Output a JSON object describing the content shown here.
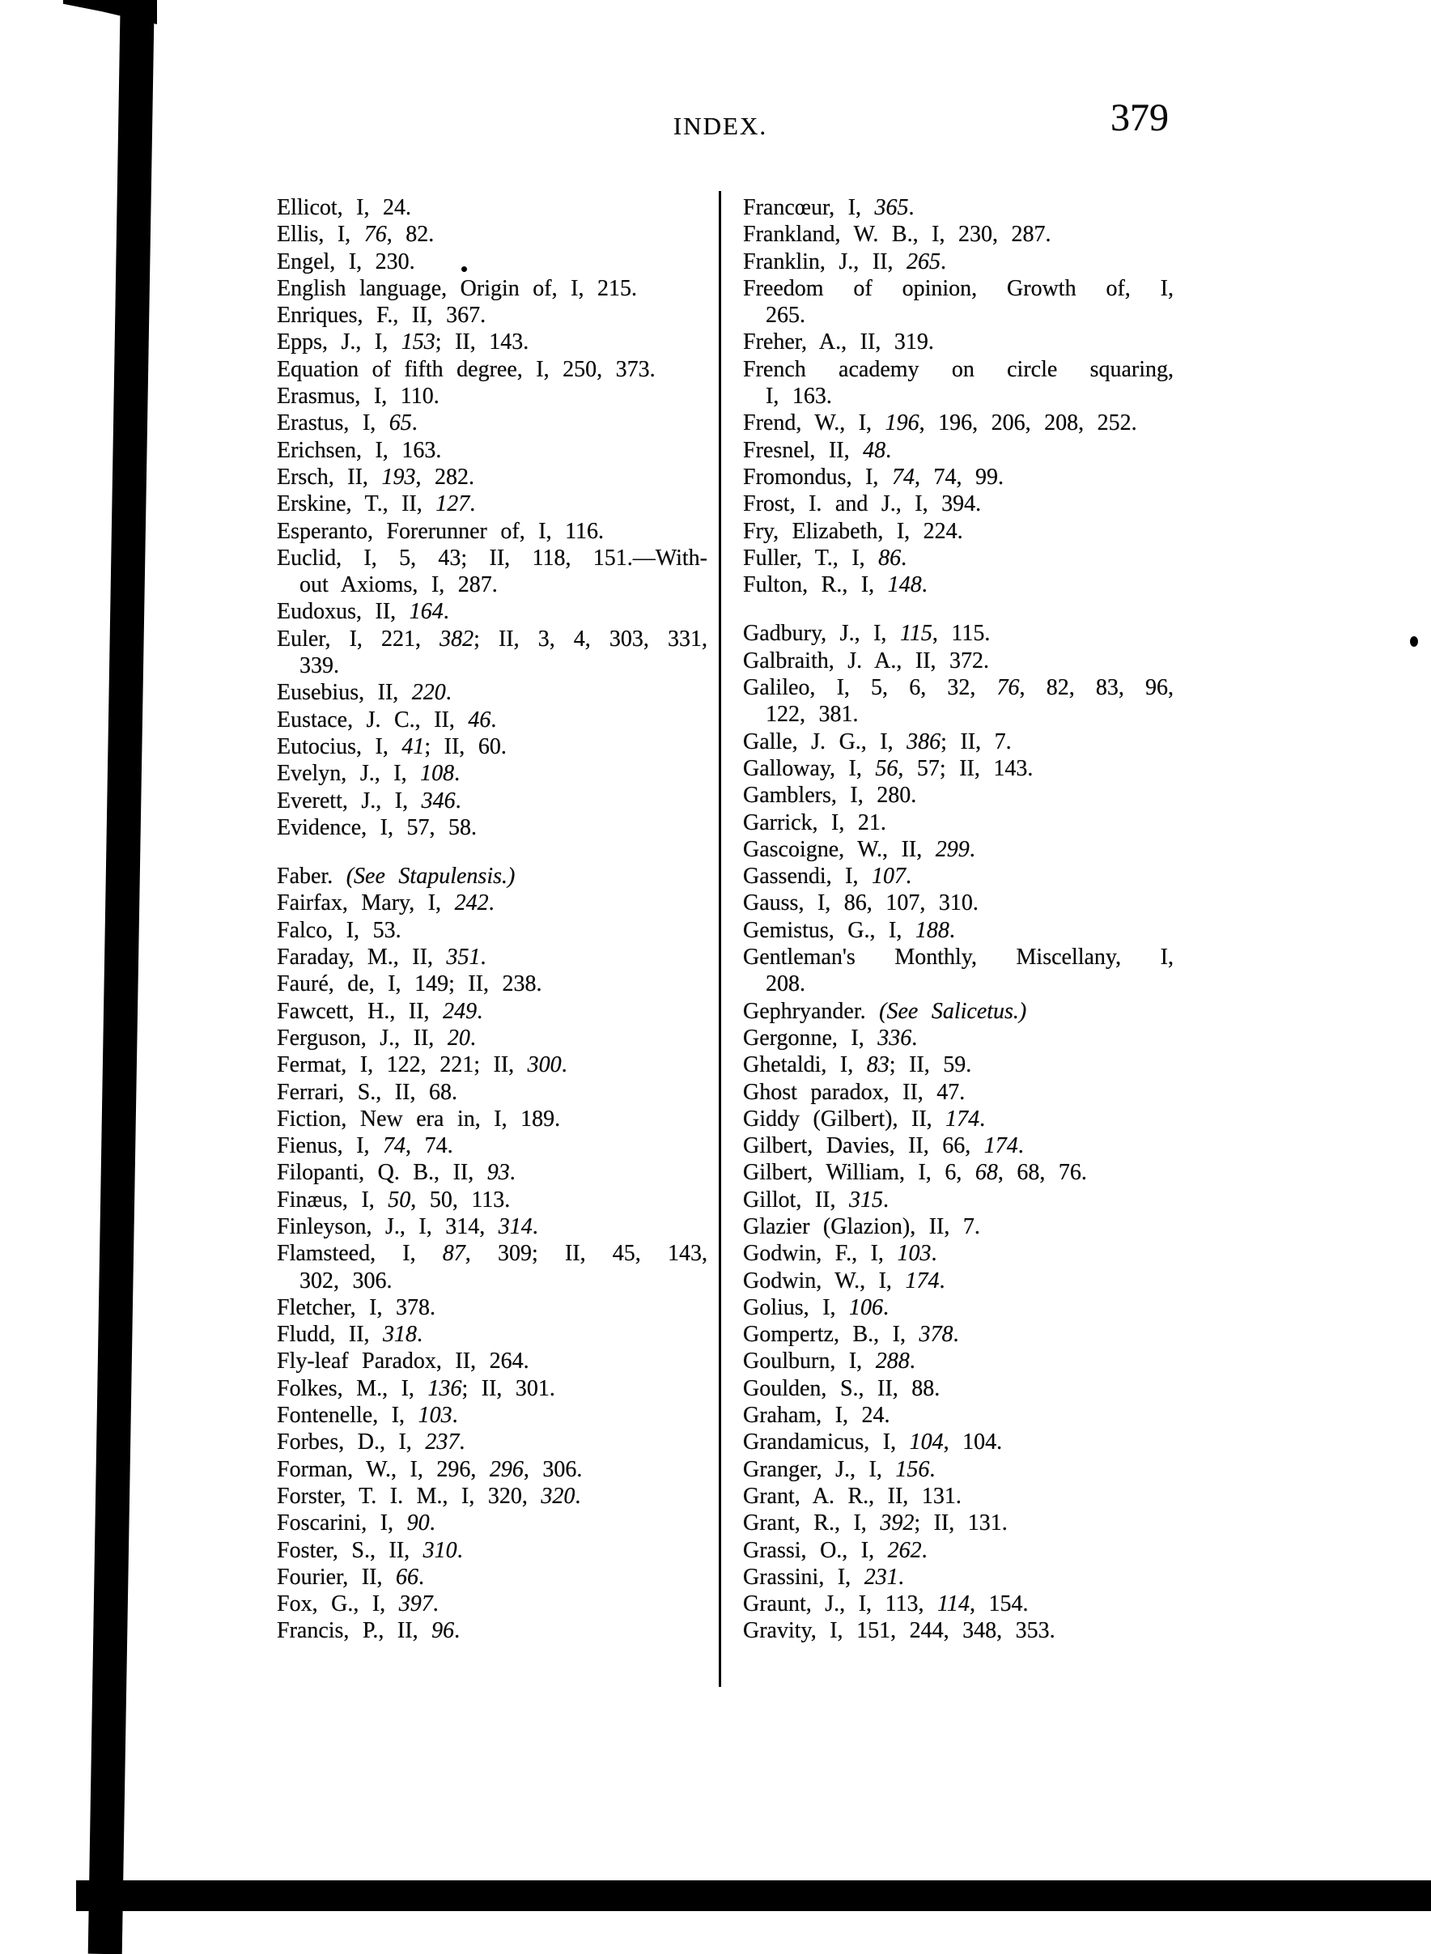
{
  "page": {
    "header_title": "INDEX.",
    "page_number": "379"
  },
  "index": {
    "columns": [
      {
        "side": "left",
        "groups": [
          [
            "Ellicot, I, 24.",
            "Ellis, I, *76*, 82.",
            "Engel, I, 230.",
            "English language, Origin of, I, 215.",
            "Enriques, F., II, 367.",
            "Epps, J., I, *153*; II, 143.",
            "Equation of fifth degree, I, 250, 373.",
            "Erasmus, I, 110.",
            "Erastus, I, *65*.",
            "Erichsen, I, 163.",
            "Ersch, II, *193*, 282.",
            "Erskine, T., II, *127*.",
            "Esperanto, Forerunner of, I, 116.",
            "Euclid, I, 5, 43; II, 118, 151.—With-\nout Axioms, I, 287.",
            "Eudoxus, II, *164*.",
            "Euler, I, 221, *382*; II, 3, 4, 303, 331,\n339.",
            "Eusebius, II, *220*.",
            "Eustace, J. C., II, *46*.",
            "Eutocius, I, *41*; II, 60.",
            "Evelyn, J., I, *108*.",
            "Everett, J., I, *346*.",
            "Evidence, I, 57, 58."
          ],
          [
            "Faber. *(See Stapulensis.)*",
            "Fairfax, Mary, I, *242*.",
            "Falco, I, 53.",
            "Faraday, M., II, *351*.",
            "Fauré, de, I, 149; II, 238.",
            "Fawcett, H., II, *249*.",
            "Ferguson, J., II, *20*.",
            "Fermat, I, 122, 221; II, *300*.",
            "Ferrari, S., II, 68.",
            "Fiction, New era in, I, 189.",
            "Fienus, I, *74*, 74.",
            "Filopanti, Q. B., II, *93*.",
            "Finæus, I, *50*, 50, 113.",
            "Finleyson, J., I, 314, *314*.",
            "Flamsteed, I, *87*, 309; II, 45, 143,\n302, 306.",
            "Fletcher, I, 378.",
            "Fludd, II, *318*.",
            "Fly-leaf Paradox, II, 264.",
            "Folkes, M., I, *136*; II, 301.",
            "Fontenelle, I, *103*.",
            "Forbes, D., I, *237*.",
            "Forman, W., I, 296, *296*, 306.",
            "Forster, T. I. M., I, 320, *320*.",
            "Foscarini, I, *90*.",
            "Foster, S., II, *310*.",
            "Fourier, II, *66*.",
            "Fox, G., I, *397*.",
            "Francis, P., II, *96*."
          ]
        ]
      },
      {
        "side": "right",
        "groups": [
          [
            "Francœur, I, *365*.",
            "Frankland, W. B., I, 230, 287.",
            "Franklin, J., II, *265*.",
            "Freedom of opinion, Growth of, I,\n265.",
            "Freher, A., II, 319.",
            "French academy on circle squaring,\nI, 163.",
            "Frend, W., I, *196*, 196, 206, 208, 252.",
            "Fresnel, II, *48*.",
            "Fromondus, I, *74*, 74, 99.",
            "Frost, I. and J., I, 394.",
            "Fry, Elizabeth, I, 224.",
            "Fuller, T., I, *86*.",
            "Fulton, R., I, *148*."
          ],
          [
            "Gadbury, J., I, *115*, 115.",
            "Galbraith, J. A., II, 372.",
            "Galileo, I, 5, 6, 32, *76*, 82, 83, 96,\n122, 381.",
            "Galle, J. G., I, *386*; II, 7.",
            "Galloway, I, *56*, 57; II, 143.",
            "Gamblers, I, 280.",
            "Garrick, I, 21.",
            "Gascoigne, W., II, *299*.",
            "Gassendi, I, *107*.",
            "Gauss, I, 86, 107, 310.",
            "Gemistus, G., I, *188*.",
            "Gentleman's Monthly, Miscellany, I,\n208.",
            "Gephryander. *(See Salicetus.)*",
            "Gergonne, I, *336*.",
            "Ghetaldi, I, *83*; II, 59.",
            "Ghost paradox, II, 47.",
            "Giddy (Gilbert), II, *174*.",
            "Gilbert, Davies, II, 66, *174*.",
            "Gilbert, William, I, 6, *68*, 68, 76.",
            "Gillot, II, *315*.",
            "Glazier (Glazion), II, 7.",
            "Godwin, F., I, *103*.",
            "Godwin, W., I, *174*.",
            "Golius, I, *106*.",
            "Gompertz, B., I, *378*.",
            "Goulburn, I, *288*.",
            "Goulden, S., II, 88.",
            "Graham, I, 24.",
            "Grandamicus, I, *104*, 104.",
            "Granger, J., I, *156*.",
            "Grant, A. R., II, 131.",
            "Grant, R., I, *392*; II, 131.",
            "Grassi, O., I, *262*.",
            "Grassini, I, *231*.",
            "Graunt, J., I, 113, *114*, 154.",
            "Gravity, I, 151, 244, 348, 353."
          ]
        ]
      }
    ]
  }
}
